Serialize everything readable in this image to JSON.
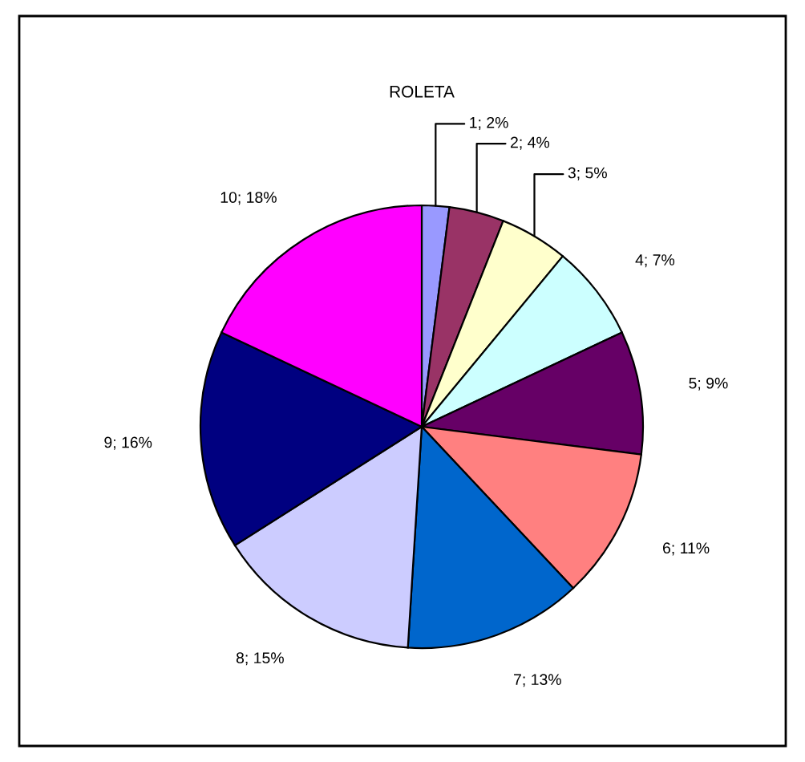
{
  "chart_data": {
    "type": "pie",
    "title": "ROLETA",
    "categories": [
      "1",
      "2",
      "3",
      "4",
      "5",
      "6",
      "7",
      "8",
      "9",
      "10"
    ],
    "values": [
      2,
      4,
      5,
      7,
      9,
      11,
      13,
      15,
      16,
      18
    ],
    "value_labels": [
      "2%",
      "4%",
      "5%",
      "7%",
      "9%",
      "11%",
      "13%",
      "15%",
      "16%",
      "18%"
    ],
    "colors": [
      "#9999ff",
      "#993366",
      "#ffffcc",
      "#ccffff",
      "#660066",
      "#ff8080",
      "#0066cc",
      "#ccccff",
      "#000080",
      "#ff00ff"
    ],
    "legend": false
  }
}
